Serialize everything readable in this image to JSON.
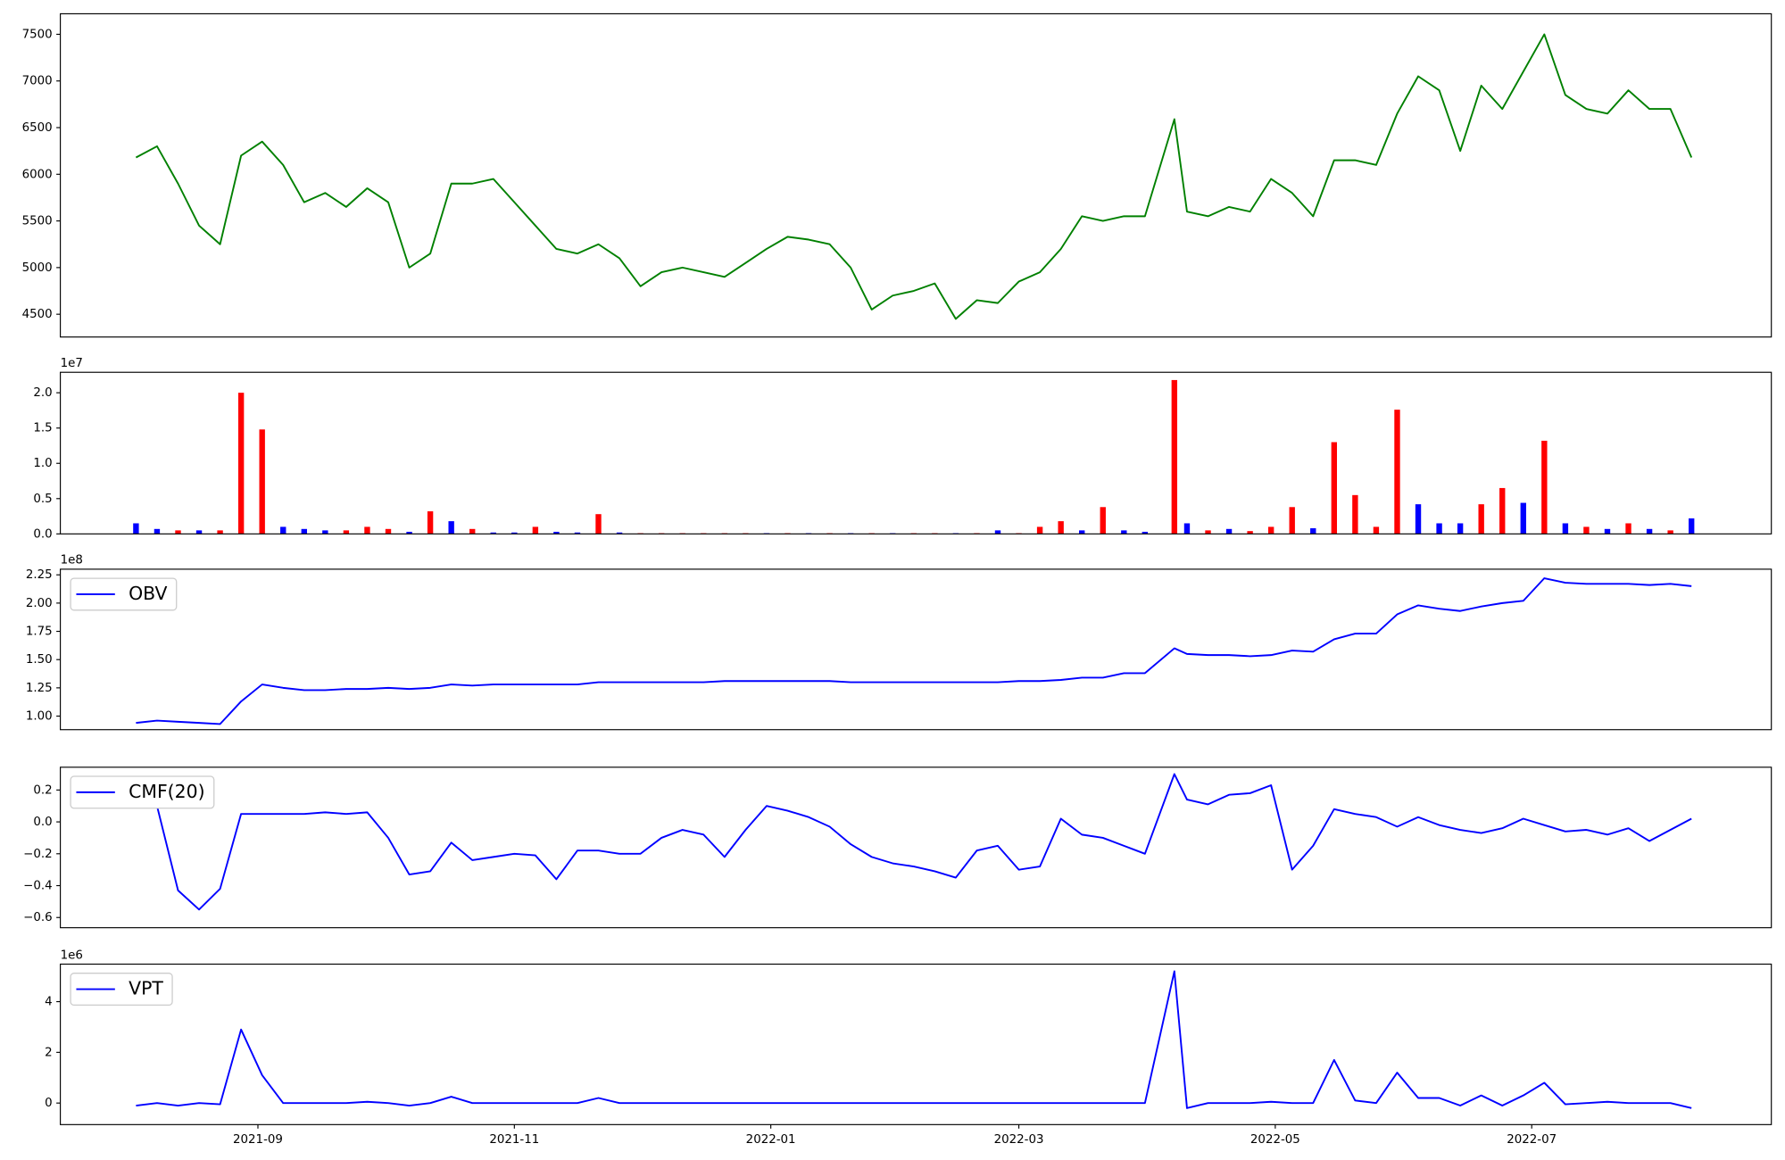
{
  "chart_data": [
    {
      "type": "line",
      "color": "#008000",
      "x": [
        18842,
        18847,
        18852,
        18857,
        18862,
        18867,
        18872,
        18877,
        18882,
        18887,
        18892,
        18897,
        18902,
        18907,
        18912,
        18917,
        18922,
        18927,
        18932,
        18937,
        18942,
        18947,
        18952,
        18957,
        18962,
        18967,
        18972,
        18977,
        18982,
        18987,
        18992,
        18997,
        19002,
        19007,
        19012,
        19017,
        19022,
        19027,
        19032,
        19037,
        19042,
        19047,
        19052,
        19057,
        19062,
        19067,
        19072,
        19077,
        19082,
        19089,
        19092,
        19097,
        19102,
        19107,
        19112,
        19117,
        19122,
        19127,
        19132,
        19137,
        19142,
        19147,
        19152,
        19157,
        19162,
        19167,
        19172,
        19177,
        19182,
        19187,
        19192,
        19197,
        19202,
        19207,
        19212
      ],
      "values": [
        6180,
        6300,
        5900,
        5450,
        5250,
        6200,
        6350,
        6100,
        5700,
        5800,
        5650,
        5850,
        5700,
        5000,
        5150,
        5900,
        5900,
        5950,
        5700,
        5450,
        5200,
        5150,
        5250,
        5100,
        4800,
        4950,
        5000,
        4950,
        4900,
        5050,
        5200,
        5330,
        5300,
        5250,
        5000,
        4550,
        4700,
        4750,
        4830,
        4450,
        4650,
        4620,
        4850,
        4950,
        5200,
        5550,
        5500,
        5550,
        5550,
        6590,
        5600,
        5550,
        5650,
        5600,
        5950,
        5800,
        5550,
        6150,
        6150,
        6100,
        6650,
        7050,
        6900,
        6250,
        6950,
        6700,
        7100,
        7500,
        6850,
        6700,
        6650,
        6900,
        6700,
        6700,
        6180
      ],
      "xlim": [
        18824,
        19231
      ],
      "ylim": [
        4256,
        7720
      ],
      "yticks": [
        4500,
        5000,
        5500,
        6000,
        6500,
        7000,
        7500
      ]
    },
    {
      "type": "bar",
      "offset_label": "1e7",
      "x": [
        18842,
        18847,
        18852,
        18857,
        18862,
        18867,
        18872,
        18877,
        18882,
        18887,
        18892,
        18897,
        18902,
        18907,
        18912,
        18917,
        18922,
        18927,
        18932,
        18937,
        18942,
        18947,
        18952,
        18957,
        18962,
        18967,
        18972,
        18977,
        18982,
        18987,
        18992,
        18997,
        19002,
        19007,
        19012,
        19017,
        19022,
        19027,
        19032,
        19037,
        19042,
        19047,
        19052,
        19057,
        19062,
        19067,
        19072,
        19077,
        19082,
        19089,
        19092,
        19097,
        19102,
        19107,
        19112,
        19117,
        19122,
        19127,
        19132,
        19137,
        19142,
        19147,
        19152,
        19157,
        19162,
        19167,
        19172,
        19177,
        19182,
        19187,
        19192,
        19197,
        19202,
        19207,
        19212
      ],
      "values": [
        0.15,
        0.07,
        0.05,
        0.05,
        0.05,
        2.0,
        1.48,
        0.1,
        0.07,
        0.05,
        0.05,
        0.1,
        0.07,
        0.03,
        0.32,
        0.18,
        0.07,
        0.02,
        0.02,
        0.1,
        0.03,
        0.02,
        0.28,
        0.02,
        0.01,
        0.01,
        0.01,
        0.01,
        0.01,
        0.01,
        0.01,
        0.01,
        0.01,
        0.01,
        0.01,
        0.01,
        0.01,
        0.01,
        0.01,
        0.01,
        0.01,
        0.05,
        0.01,
        0.1,
        0.18,
        0.05,
        0.38,
        0.05,
        0.03,
        2.18,
        0.15,
        0.05,
        0.07,
        0.04,
        0.1,
        0.38,
        0.08,
        1.3,
        0.55,
        0.1,
        1.76,
        0.42,
        0.15,
        0.15,
        0.42,
        0.65,
        0.44,
        1.32,
        0.15,
        0.1,
        0.07,
        0.15,
        0.07,
        0.05,
        0.22
      ],
      "colors": [
        "blue",
        "blue",
        "red",
        "blue",
        "red",
        "red",
        "red",
        "blue",
        "blue",
        "blue",
        "red",
        "red",
        "red",
        "blue",
        "red",
        "blue",
        "red",
        "blue",
        "blue",
        "red",
        "blue",
        "blue",
        "red",
        "blue",
        "red",
        "red",
        "red",
        "red",
        "red",
        "red",
        "blue",
        "red",
        "blue",
        "red",
        "blue",
        "red",
        "blue",
        "red",
        "red",
        "blue",
        "red",
        "blue",
        "red",
        "red",
        "red",
        "blue",
        "red",
        "blue",
        "blue",
        "red",
        "blue",
        "red",
        "blue",
        "red",
        "red",
        "red",
        "blue",
        "red",
        "red",
        "red",
        "red",
        "blue",
        "blue",
        "blue",
        "red",
        "red",
        "blue",
        "red",
        "blue",
        "red",
        "blue",
        "red",
        "blue",
        "red",
        "blue"
      ],
      "xlim": [
        18824,
        19231
      ],
      "ylim": [
        0,
        2.29
      ],
      "yticks": [
        {
          "value": 0,
          "label": "0.0"
        },
        0.5,
        {
          "value": 1,
          "label": "1.0"
        },
        1.5,
        {
          "value": 2,
          "label": "2.0"
        }
      ]
    },
    {
      "type": "line",
      "offset_label": "1e8",
      "legend": "upper left",
      "x": [
        18842,
        18847,
        18852,
        18857,
        18862,
        18867,
        18872,
        18877,
        18882,
        18887,
        18892,
        18897,
        18902,
        18907,
        18912,
        18917,
        18922,
        18927,
        18932,
        18937,
        18942,
        18947,
        18952,
        18957,
        18962,
        18967,
        18972,
        18977,
        18982,
        18987,
        18992,
        18997,
        19002,
        19007,
        19012,
        19017,
        19022,
        19027,
        19032,
        19037,
        19042,
        19047,
        19052,
        19057,
        19062,
        19067,
        19072,
        19077,
        19082,
        19089,
        19092,
        19097,
        19102,
        19107,
        19112,
        19117,
        19122,
        19127,
        19132,
        19137,
        19142,
        19147,
        19152,
        19157,
        19162,
        19167,
        19172,
        19177,
        19182,
        19187,
        19192,
        19197,
        19202,
        19207,
        19212
      ],
      "series": [
        {
          "name": "OBV",
          "color": "#0000ff",
          "values": [
            0.94,
            0.96,
            0.95,
            0.94,
            0.93,
            1.13,
            1.28,
            1.25,
            1.23,
            1.23,
            1.24,
            1.24,
            1.25,
            1.24,
            1.25,
            1.28,
            1.27,
            1.28,
            1.28,
            1.28,
            1.28,
            1.28,
            1.3,
            1.3,
            1.3,
            1.3,
            1.3,
            1.3,
            1.31,
            1.31,
            1.31,
            1.31,
            1.31,
            1.31,
            1.3,
            1.3,
            1.3,
            1.3,
            1.3,
            1.3,
            1.3,
            1.3,
            1.31,
            1.31,
            1.32,
            1.34,
            1.34,
            1.38,
            1.38,
            1.6,
            1.55,
            1.54,
            1.54,
            1.53,
            1.54,
            1.58,
            1.57,
            1.68,
            1.73,
            1.73,
            1.9,
            1.98,
            1.95,
            1.93,
            1.97,
            2.0,
            2.02,
            2.22,
            2.18,
            2.17,
            2.17,
            2.17,
            2.16,
            2.17,
            2.15
          ]
        }
      ],
      "xlim": [
        18824,
        19231
      ],
      "ylim": [
        0.88,
        2.3
      ],
      "yticks": [
        {
          "value": 1,
          "label": "1.00"
        },
        1.25,
        {
          "value": 1.5,
          "label": "1.50"
        },
        1.75,
        {
          "value": 2,
          "label": "2.00"
        },
        2.25
      ]
    },
    {
      "type": "line",
      "legend": "upper left",
      "x": [
        18842,
        18847,
        18852,
        18857,
        18862,
        18867,
        18872,
        18877,
        18882,
        18887,
        18892,
        18897,
        18902,
        18907,
        18912,
        18917,
        18922,
        18927,
        18932,
        18937,
        18942,
        18947,
        18952,
        18957,
        18962,
        18967,
        18972,
        18977,
        18982,
        18987,
        18992,
        18997,
        19002,
        19007,
        19012,
        19017,
        19022,
        19027,
        19032,
        19037,
        19042,
        19047,
        19052,
        19057,
        19062,
        19067,
        19072,
        19077,
        19082,
        19089,
        19092,
        19097,
        19102,
        19107,
        19112,
        19117,
        19122,
        19127,
        19132,
        19137,
        19142,
        19147,
        19152,
        19157,
        19162,
        19167,
        19172,
        19177,
        19182,
        19187,
        19192,
        19197,
        19202,
        19207,
        19212
      ],
      "series": [
        {
          "name": "CMF(20)",
          "color": "#0000ff",
          "values": [
            0.1,
            0.1,
            -0.43,
            -0.55,
            -0.42,
            0.05,
            0.05,
            0.05,
            0.05,
            0.06,
            0.05,
            0.06,
            -0.1,
            -0.33,
            -0.31,
            -0.13,
            -0.24,
            -0.22,
            -0.2,
            -0.21,
            -0.36,
            -0.18,
            -0.18,
            -0.2,
            -0.2,
            -0.1,
            -0.05,
            -0.08,
            -0.22,
            -0.05,
            0.1,
            0.07,
            0.03,
            -0.03,
            -0.14,
            -0.22,
            -0.26,
            -0.28,
            -0.31,
            -0.35,
            -0.18,
            -0.15,
            -0.3,
            -0.28,
            0.02,
            -0.08,
            -0.1,
            -0.15,
            -0.2,
            0.3,
            0.14,
            0.11,
            0.17,
            0.18,
            0.23,
            -0.3,
            -0.15,
            0.08,
            0.05,
            0.03,
            -0.03,
            0.03,
            -0.02,
            -0.05,
            -0.07,
            -0.04,
            0.02,
            -0.02,
            -0.06,
            -0.05,
            -0.08,
            -0.04,
            -0.12,
            -0.05,
            0.02
          ]
        }
      ],
      "xlim": [
        18824,
        19231
      ],
      "ylim": [
        -0.664,
        0.343
      ],
      "yticks": [
        {
          "value": -0.6,
          "label": "−0.6"
        },
        {
          "value": -0.4,
          "label": "−0.4"
        },
        {
          "value": -0.2,
          "label": "−0.2"
        },
        {
          "value": 0,
          "label": "0.0"
        },
        0.2
      ]
    },
    {
      "type": "line",
      "offset_label": "1e6",
      "legend": "upper left",
      "x": [
        18842,
        18847,
        18852,
        18857,
        18862,
        18867,
        18872,
        18877,
        18882,
        18887,
        18892,
        18897,
        18902,
        18907,
        18912,
        18917,
        18922,
        18927,
        18932,
        18937,
        18942,
        18947,
        18952,
        18957,
        18962,
        18967,
        18972,
        18977,
        18982,
        18987,
        18992,
        18997,
        19002,
        19007,
        19012,
        19017,
        19022,
        19027,
        19032,
        19037,
        19042,
        19047,
        19052,
        19057,
        19062,
        19067,
        19072,
        19077,
        19082,
        19089,
        19092,
        19097,
        19102,
        19107,
        19112,
        19117,
        19122,
        19127,
        19132,
        19137,
        19142,
        19147,
        19152,
        19157,
        19162,
        19167,
        19172,
        19177,
        19182,
        19187,
        19192,
        19197,
        19202,
        19207,
        19212
      ],
      "series": [
        {
          "name": "VPT",
          "color": "#0000ff",
          "values": [
            -0.1,
            0.0,
            -0.1,
            0.0,
            -0.05,
            2.9,
            1.1,
            0.0,
            0.0,
            0.0,
            0.0,
            0.05,
            0.0,
            -0.1,
            0.0,
            0.25,
            0.0,
            0.0,
            0.0,
            0.0,
            0.0,
            0.0,
            0.2,
            0.0,
            0.0,
            0.0,
            0.0,
            0.0,
            0.0,
            0.0,
            0.0,
            0.0,
            0.0,
            0.0,
            0.0,
            0.0,
            0.0,
            0.0,
            0.0,
            0.0,
            0.0,
            0.0,
            0.0,
            0.0,
            0.0,
            0.0,
            0.0,
            0.0,
            0.0,
            5.2,
            -0.2,
            0.0,
            0.0,
            0.0,
            0.05,
            0.0,
            0.0,
            1.7,
            0.1,
            0.0,
            1.2,
            0.2,
            0.2,
            -0.1,
            0.3,
            -0.1,
            0.3,
            0.8,
            -0.05,
            0.0,
            0.05,
            0.0,
            0.0,
            0.0,
            -0.2
          ]
        }
      ],
      "xlim": [
        18824,
        19231
      ],
      "ylim": [
        -0.85,
        5.48
      ],
      "yticks": [
        0,
        2,
        4
      ],
      "xticks": [
        {
          "value": 18871,
          "label": "2021-09"
        },
        {
          "value": 18932,
          "label": "2021-11"
        },
        {
          "value": 18993,
          "label": "2022-01"
        },
        {
          "value": 19052,
          "label": "2022-03"
        },
        {
          "value": 19113,
          "label": "2022-05"
        },
        {
          "value": 19174,
          "label": "2022-07"
        }
      ]
    }
  ]
}
